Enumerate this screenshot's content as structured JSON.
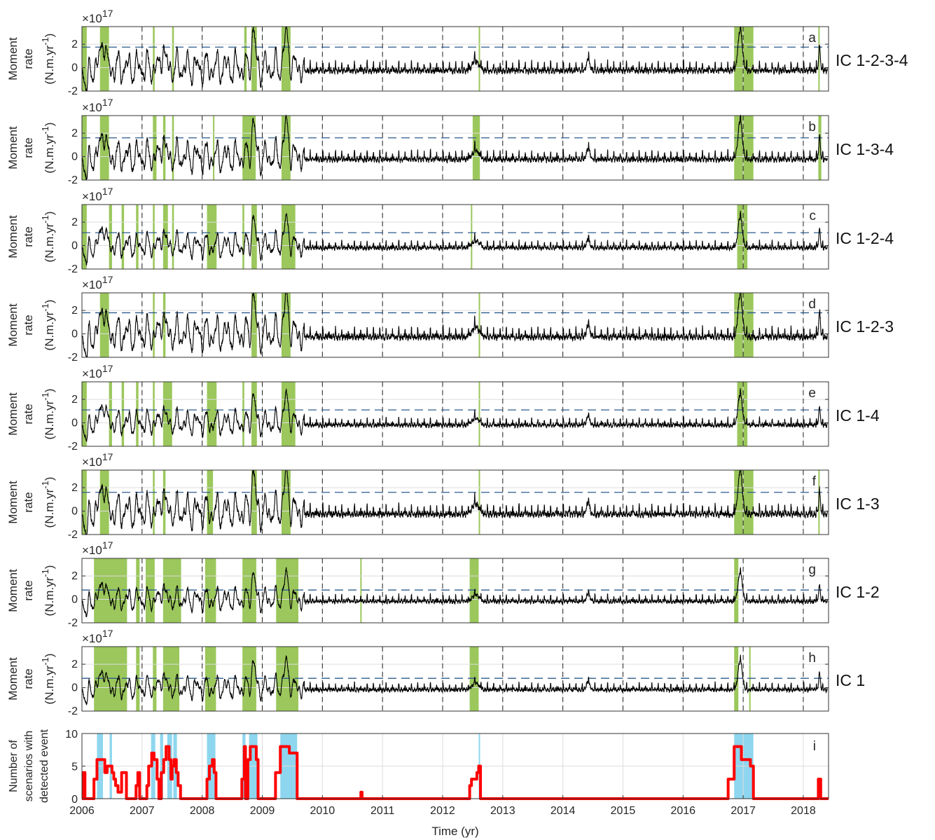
{
  "figure": {
    "x_axis_title": "Time (yr)",
    "x_tick_labels": [
      "2006",
      "2007",
      "2008",
      "2009",
      "2010",
      "2011",
      "2012",
      "2013",
      "2014",
      "2015",
      "2016",
      "2017",
      "2018"
    ],
    "moment_ylabel_line1": "Moment",
    "moment_ylabel_line2": "rate",
    "moment_ylabel_line3": "(N.m.yr",
    "moment_ylabel_sup": "-1",
    "moment_ylabel_close": ")",
    "exponent_base": "×10",
    "exponent_power": "17",
    "scenario_ylabel_line1": "Number of",
    "scenario_ylabel_line2": "scenarios with",
    "scenario_ylabel_line3": "detected event",
    "colors": {
      "trace": "#000000",
      "threshold": "#2c5b8f",
      "detection": "#9bc75c",
      "scenario_count": "#ff0000",
      "scenario_detection": "#8ed6ef",
      "grid": "#dddddd",
      "dash_vertical": "#222222"
    }
  },
  "chart_data": [
    {
      "panel": "a",
      "ic_label": "IC 1-2-3-4",
      "type": "line",
      "ylim": [
        -2,
        3.5
      ],
      "y_ticks": [
        -2,
        0,
        2
      ],
      "threshold": 1.75,
      "amp": 1.0,
      "y_unit_scale": "1e17",
      "detections": [
        [
          2006.0,
          2006.08
        ],
        [
          2006.3,
          2006.45
        ],
        [
          2007.18,
          2007.21
        ],
        [
          2007.5,
          2007.53
        ],
        [
          2008.7,
          2008.74
        ],
        [
          2008.82,
          2008.91
        ],
        [
          2009.32,
          2009.47
        ],
        [
          2012.6,
          2012.62
        ],
        [
          2016.85,
          2017.17
        ],
        [
          2018.25,
          2018.27
        ]
      ]
    },
    {
      "panel": "b",
      "ic_label": "IC 1-3-4",
      "type": "line",
      "ylim": [
        -2,
        3.5
      ],
      "y_ticks": [
        -2,
        0,
        2
      ],
      "threshold": 1.6,
      "amp": 0.95,
      "y_unit_scale": "1e17",
      "detections": [
        [
          2006.0,
          2006.08
        ],
        [
          2006.3,
          2006.45
        ],
        [
          2007.18,
          2007.24
        ],
        [
          2007.35,
          2007.39
        ],
        [
          2007.5,
          2007.53
        ],
        [
          2008.18,
          2008.2
        ],
        [
          2008.67,
          2008.89
        ],
        [
          2009.32,
          2009.47
        ],
        [
          2012.5,
          2012.62
        ],
        [
          2016.85,
          2017.17
        ],
        [
          2018.25,
          2018.3
        ]
      ]
    },
    {
      "panel": "c",
      "ic_label": "IC 1-2-4",
      "type": "line",
      "ylim": [
        -2,
        3.5
      ],
      "y_ticks": [
        -2,
        0,
        2
      ],
      "threshold": 1.1,
      "amp": 0.75,
      "y_unit_scale": "1e17",
      "detections": [
        [
          2006.0,
          2006.08
        ],
        [
          2006.45,
          2006.5
        ],
        [
          2006.66,
          2006.7
        ],
        [
          2006.9,
          2006.94
        ],
        [
          2007.18,
          2007.21
        ],
        [
          2007.35,
          2007.43
        ],
        [
          2007.5,
          2007.53
        ],
        [
          2008.08,
          2008.24
        ],
        [
          2008.67,
          2008.7
        ],
        [
          2008.82,
          2008.91
        ],
        [
          2009.32,
          2009.55
        ],
        [
          2012.47,
          2012.49
        ],
        [
          2016.9,
          2017.07
        ]
      ]
    },
    {
      "panel": "d",
      "ic_label": "IC 1-2-3",
      "type": "line",
      "ylim": [
        -2,
        3.5
      ],
      "y_ticks": [
        -2,
        0,
        2
      ],
      "threshold": 1.8,
      "amp": 1.05,
      "y_unit_scale": "1e17",
      "detections": [
        [
          2006.3,
          2006.45
        ],
        [
          2007.18,
          2007.21
        ],
        [
          2007.35,
          2007.39
        ],
        [
          2008.82,
          2008.91
        ],
        [
          2009.32,
          2009.47
        ],
        [
          2012.6,
          2012.62
        ],
        [
          2016.85,
          2017.17
        ]
      ]
    },
    {
      "panel": "e",
      "ic_label": "IC 1-4",
      "type": "line",
      "ylim": [
        -2,
        3.5
      ],
      "y_ticks": [
        -2,
        0,
        2
      ],
      "threshold": 1.1,
      "amp": 0.75,
      "y_unit_scale": "1e17",
      "detections": [
        [
          2006.0,
          2006.08
        ],
        [
          2006.45,
          2006.5
        ],
        [
          2006.66,
          2006.7
        ],
        [
          2006.9,
          2006.94
        ],
        [
          2007.18,
          2007.21
        ],
        [
          2007.35,
          2007.5
        ],
        [
          2008.08,
          2008.24
        ],
        [
          2008.67,
          2008.7
        ],
        [
          2008.82,
          2008.91
        ],
        [
          2009.32,
          2009.55
        ],
        [
          2012.6,
          2012.62
        ],
        [
          2016.9,
          2017.07
        ]
      ]
    },
    {
      "panel": "f",
      "ic_label": "IC 1-3",
      "type": "line",
      "ylim": [
        -2,
        3.5
      ],
      "y_ticks": [
        -2,
        0,
        2
      ],
      "threshold": 1.6,
      "amp": 1.05,
      "y_unit_scale": "1e17",
      "detections": [
        [
          2006.0,
          2006.08
        ],
        [
          2006.3,
          2006.45
        ],
        [
          2007.18,
          2007.21
        ],
        [
          2007.35,
          2007.39
        ],
        [
          2008.08,
          2008.18
        ],
        [
          2008.82,
          2008.91
        ],
        [
          2009.32,
          2009.47
        ],
        [
          2012.6,
          2012.62
        ],
        [
          2016.85,
          2017.17
        ],
        [
          2018.25,
          2018.27
        ]
      ]
    },
    {
      "panel": "g",
      "ic_label": "IC 1-2",
      "type": "line",
      "ylim": [
        -2,
        3.5
      ],
      "y_ticks": [
        -2,
        0,
        2
      ],
      "threshold": 0.8,
      "amp": 0.7,
      "y_unit_scale": "1e17",
      "detections": [
        [
          2006.2,
          2006.75
        ],
        [
          2006.9,
          2006.96
        ],
        [
          2007.06,
          2007.21
        ],
        [
          2007.35,
          2007.65
        ],
        [
          2008.05,
          2008.23
        ],
        [
          2008.67,
          2008.9
        ],
        [
          2009.23,
          2009.6
        ],
        [
          2010.63,
          2010.65
        ],
        [
          2012.45,
          2012.6
        ],
        [
          2016.85,
          2016.92
        ]
      ]
    },
    {
      "panel": "h",
      "ic_label": "IC 1",
      "type": "line",
      "ylim": [
        -2,
        3.5
      ],
      "y_ticks": [
        -2,
        0,
        2
      ],
      "threshold": 0.8,
      "amp": 0.7,
      "y_unit_scale": "1e17",
      "detections": [
        [
          2006.2,
          2006.75
        ],
        [
          2006.9,
          2006.96
        ],
        [
          2007.18,
          2007.24
        ],
        [
          2007.35,
          2007.62
        ],
        [
          2008.05,
          2008.23
        ],
        [
          2008.67,
          2008.9
        ],
        [
          2009.23,
          2009.6
        ],
        [
          2012.45,
          2012.6
        ],
        [
          2016.85,
          2016.92
        ],
        [
          2017.1,
          2017.12
        ]
      ]
    },
    {
      "panel": "i",
      "type": "step",
      "ylim": [
        0,
        10
      ],
      "y_ticks": [
        0,
        5,
        10
      ],
      "xlim": [
        2006.0,
        2018.42
      ],
      "detections": [
        [
          2006.25,
          2006.35
        ],
        [
          2006.46,
          2006.5
        ],
        [
          2007.15,
          2007.22
        ],
        [
          2007.3,
          2007.35
        ],
        [
          2007.42,
          2007.5
        ],
        [
          2007.52,
          2007.58
        ],
        [
          2008.08,
          2008.22
        ],
        [
          2008.67,
          2008.72
        ],
        [
          2008.78,
          2008.92
        ],
        [
          2009.3,
          2009.58
        ],
        [
          2012.6,
          2012.62
        ],
        [
          2016.85,
          2017.17
        ]
      ],
      "steps": [
        [
          2006.0,
          0
        ],
        [
          2006.02,
          4
        ],
        [
          2006.05,
          0
        ],
        [
          2006.2,
          3
        ],
        [
          2006.25,
          6
        ],
        [
          2006.38,
          4
        ],
        [
          2006.42,
          5
        ],
        [
          2006.5,
          4
        ],
        [
          2006.53,
          3
        ],
        [
          2006.56,
          2
        ],
        [
          2006.6,
          1
        ],
        [
          2006.66,
          4
        ],
        [
          2006.74,
          0
        ],
        [
          2006.9,
          2
        ],
        [
          2006.93,
          4
        ],
        [
          2006.96,
          0
        ],
        [
          2007.08,
          2
        ],
        [
          2007.11,
          5
        ],
        [
          2007.16,
          7
        ],
        [
          2007.2,
          6
        ],
        [
          2007.25,
          3
        ],
        [
          2007.28,
          0
        ],
        [
          2007.32,
          4
        ],
        [
          2007.36,
          6
        ],
        [
          2007.4,
          8
        ],
        [
          2007.45,
          6
        ],
        [
          2007.48,
          3
        ],
        [
          2007.5,
          5
        ],
        [
          2007.53,
          6
        ],
        [
          2007.57,
          4
        ],
        [
          2007.6,
          2
        ],
        [
          2007.64,
          0
        ],
        [
          2008.08,
          3
        ],
        [
          2008.12,
          5
        ],
        [
          2008.17,
          6
        ],
        [
          2008.2,
          4
        ],
        [
          2008.23,
          0
        ],
        [
          2008.66,
          3
        ],
        [
          2008.7,
          8
        ],
        [
          2008.72,
          0
        ],
        [
          2008.76,
          6
        ],
        [
          2008.8,
          8
        ],
        [
          2008.9,
          6
        ],
        [
          2008.93,
          0
        ],
        [
          2009.22,
          4
        ],
        [
          2009.3,
          8
        ],
        [
          2009.45,
          7
        ],
        [
          2009.58,
          0
        ],
        [
          2010.64,
          1
        ],
        [
          2010.66,
          0
        ],
        [
          2012.45,
          2
        ],
        [
          2012.48,
          3
        ],
        [
          2012.57,
          4
        ],
        [
          2012.6,
          5
        ],
        [
          2012.63,
          0
        ],
        [
          2016.75,
          3
        ],
        [
          2016.85,
          8
        ],
        [
          2016.97,
          6
        ],
        [
          2017.05,
          6
        ],
        [
          2017.12,
          5
        ],
        [
          2017.17,
          0
        ],
        [
          2018.25,
          3
        ],
        [
          2018.29,
          0
        ],
        [
          2018.42,
          0
        ]
      ]
    }
  ]
}
